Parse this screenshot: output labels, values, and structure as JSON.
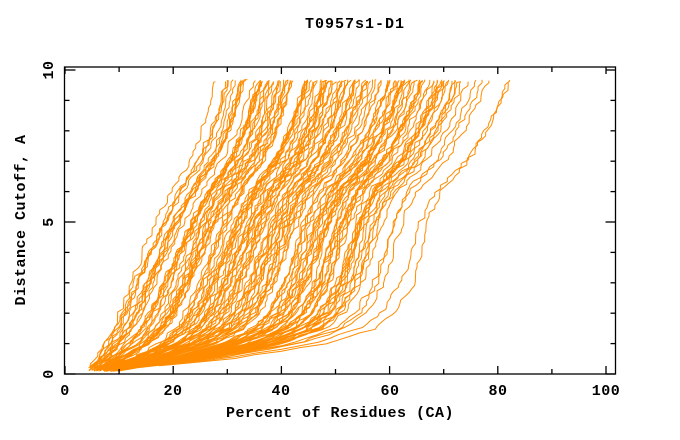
{
  "page": {
    "background": "#ffffff"
  },
  "chart_data": {
    "type": "line",
    "title": "T0957s1-D1",
    "xlabel": "Percent of Residues (CA)",
    "ylabel": "Distance Cutoff, A",
    "xlim": [
      0,
      101.7
    ],
    "ylim": [
      0,
      10.1
    ],
    "grid": false,
    "legend": false,
    "axis_color": "#000000",
    "series_color": "#ff8c00",
    "background_color": "#ffffff",
    "x_ticks": [
      0,
      20,
      40,
      60,
      80,
      100
    ],
    "x_tick_labels": [
      "0",
      "20",
      "40",
      "60",
      "80",
      "100"
    ],
    "x_minor_ticks": [
      10,
      30,
      50,
      70,
      90
    ],
    "y_ticks": [
      0,
      5,
      10
    ],
    "y_tick_labels": [
      "0",
      "5",
      "10"
    ],
    "y_minor_ticks": [
      1,
      2,
      3,
      4,
      6,
      7,
      8,
      9
    ],
    "n_curves": 129,
    "series_semantics": "Each orange curve is one predicted model of target T0957s1-D1: cumulative percent of CA residues (x-axis) superimposable under a distance cutoff (y-axis), curves rising from ~5-7% at 0.1 A up to ~9.65 A.",
    "cutoff_levels": [
      0.15,
      0.5,
      1,
      1.5,
      2,
      3,
      4,
      5,
      6,
      7,
      8,
      9,
      9.65
    ],
    "envelope_best_percent": [
      5.2,
      6.5,
      8,
      9.5,
      10.7,
      13,
      15.5,
      18,
      21,
      24.5,
      27,
      28.5,
      29.5
    ],
    "envelope_worst_percent": [
      10,
      30,
      48,
      57,
      61,
      64.5,
      66,
      67.5,
      70,
      75.5,
      79,
      82,
      83.5
    ],
    "curve_gen": {
      "count_main": 124,
      "t_min": 0.0,
      "t_max": 0.8,
      "outlier_ts": [
        0.84,
        0.87,
        0.9,
        0.93,
        1.0
      ],
      "seed": 20181,
      "start_cutoff_min": 0.08,
      "start_cutoff_spread": 0.2,
      "end_cutoff": 9.65,
      "step": 0.12,
      "jitter_percent": 0.55
    }
  }
}
